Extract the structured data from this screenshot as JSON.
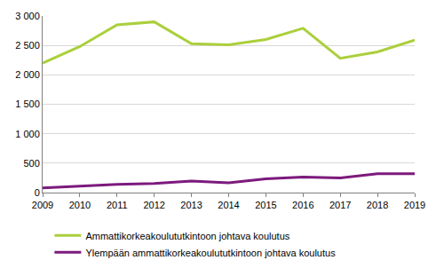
{
  "chart_data": {
    "type": "line",
    "x": [
      2009,
      2010,
      2011,
      2012,
      2013,
      2014,
      2015,
      2016,
      2017,
      2018,
      2019
    ],
    "series": [
      {
        "name": "Ammattikorkeakoulututkintoon johtava koulutus",
        "color": "#abcf3c",
        "values": [
          2200,
          2480,
          2850,
          2900,
          2530,
          2510,
          2600,
          2790,
          2280,
          2390,
          2590
        ]
      },
      {
        "name": "Ylempään ammattikorkeakoulututkintoon johtava koulutus",
        "color": "#7d1a7d",
        "values": [
          80,
          110,
          140,
          155,
          195,
          165,
          235,
          265,
          250,
          320,
          320
        ]
      }
    ],
    "xlim": [
      2009,
      2019
    ],
    "xticks": [
      2009,
      2010,
      2011,
      2012,
      2013,
      2014,
      2015,
      2016,
      2017,
      2018,
      2019
    ],
    "ylim": [
      0,
      3000
    ],
    "yticks": [
      0,
      500,
      {
        "value": 1000,
        "label": "1 000"
      },
      {
        "value": 1500,
        "label": "1 500"
      },
      {
        "value": 2000,
        "label": "2 000"
      },
      {
        "value": 2500,
        "label": "2 500"
      },
      {
        "value": 3000,
        "label": "3 000"
      }
    ],
    "grid": true,
    "legend": "bottom"
  }
}
